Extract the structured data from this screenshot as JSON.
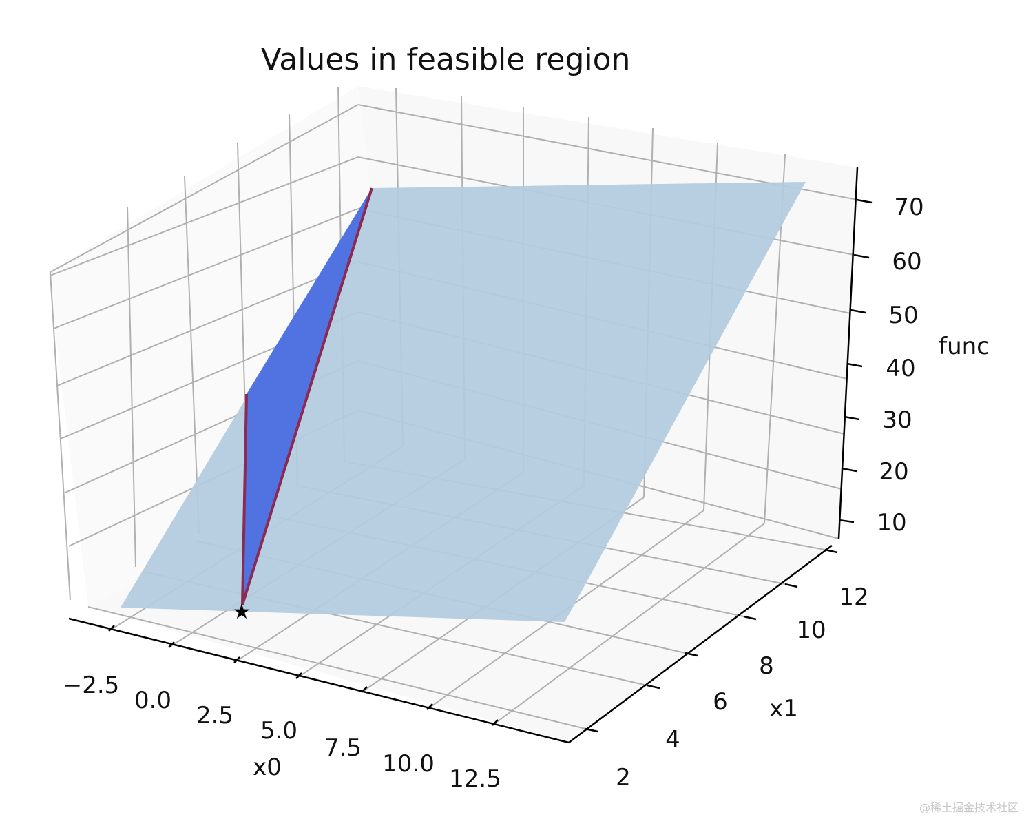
{
  "chart_data": {
    "type": "surface3d",
    "title": "Values in feasible region",
    "xlabel": "x0",
    "ylabel": "x1",
    "zlabel": "func",
    "x_ticks": [
      "−2.5",
      "0.0",
      "2.5",
      "5.0",
      "7.5",
      "10.0",
      "12.5"
    ],
    "y_ticks": [
      "2",
      "4",
      "6",
      "8",
      "10",
      "12"
    ],
    "z_ticks": [
      "10",
      "20",
      "30",
      "40",
      "50",
      "60",
      "70"
    ],
    "colors": {
      "plane": "#b3cbdf",
      "feasible_face": "#4a6ee0",
      "feasible_edge": "#8b2a52",
      "marker": "#000000",
      "grid": "#b0b0b0",
      "axis": "#000000"
    },
    "marker": "star"
  },
  "watermark": "@稀土掘金技术社区"
}
